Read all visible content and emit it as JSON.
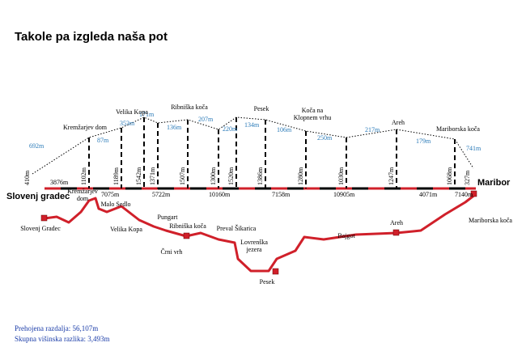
{
  "title": "Takole pa izgleda naša pot",
  "profile": {
    "start": "Slovenj gradec",
    "end": "Maribor",
    "elevations": [
      "410m",
      "1102m",
      "1189m",
      "1542m",
      "1371m",
      "1507m",
      "1300m",
      "1520m",
      "1386m",
      "1280m",
      "1030m",
      "1247m",
      "1068m",
      "327m"
    ],
    "ascents": [
      "692m",
      "87m",
      "353m",
      "171m",
      "136m",
      "207m",
      "220m",
      "134m",
      "106m",
      "250m",
      "217m",
      "179m",
      "741m"
    ],
    "distances": [
      "3876m",
      "7075m",
      "5722m",
      "10160m",
      "7158m",
      "10905m",
      "4071m",
      "7140m"
    ],
    "points": [
      [
        "Kremžarjev dom"
      ],
      [
        "Velika Kopa"
      ],
      [
        "Ribniška koča"
      ],
      [
        "Pesek"
      ],
      [
        "Koča na",
        "Klopnem vrhu"
      ],
      [
        "Areh"
      ],
      [
        "Mariborska koča"
      ]
    ]
  },
  "map": {
    "labels": [
      [
        "Slovenj Gradec"
      ],
      [
        "Kremžarjev",
        "dom"
      ],
      [
        "Malo Sedlo"
      ],
      [
        "Velika Kopa"
      ],
      [
        "Pungart"
      ],
      [
        "Ribniška koča"
      ],
      [
        "Črni vrh"
      ],
      [
        "Preval Šikarica"
      ],
      [
        "Lovrenška",
        "jezera"
      ],
      [
        "Pesek"
      ],
      [
        "Bajgot"
      ],
      [
        "Areh"
      ],
      [
        "Mariborska koča"
      ]
    ]
  },
  "footer": [
    "Prehojena razdalja: 56,107m",
    "Skupna višinska razlika: 3,493m"
  ]
}
